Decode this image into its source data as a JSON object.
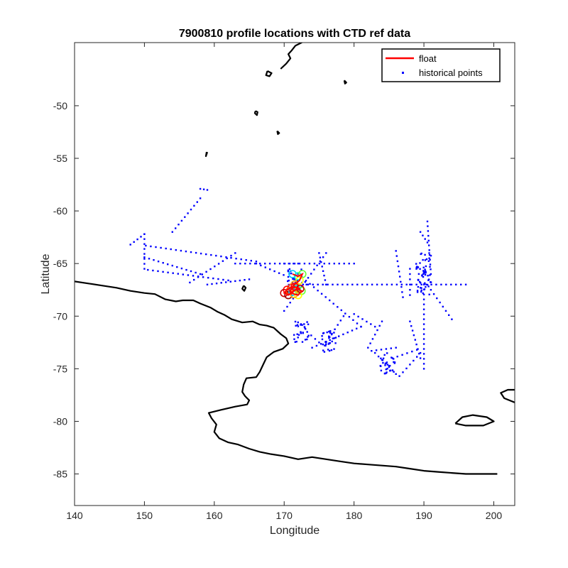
{
  "chart_data": {
    "type": "scatter",
    "title": "7900810 profile locations with CTD ref data",
    "xlabel": "Longitude",
    "ylabel": "Latitude",
    "xlim": [
      140,
      203
    ],
    "ylim": [
      -88,
      -44
    ],
    "xticks": [
      140,
      150,
      160,
      170,
      180,
      190,
      200
    ],
    "yticks": [
      -50,
      -55,
      -60,
      -65,
      -70,
      -75,
      -80,
      -85
    ],
    "grid": false,
    "legend": {
      "placement": "top-right",
      "entries": [
        {
          "label": "float",
          "color": "#ff0000",
          "marker": "line"
        },
        {
          "label": "historical points",
          "color": "#0000ff",
          "marker": "dot"
        }
      ]
    },
    "colors": {
      "historical": "#0000ff",
      "float": "#ff0000",
      "coast": "#000000"
    },
    "coastline": [
      [
        [
          140.0,
          -66.7
        ],
        [
          142.0,
          -66.9
        ],
        [
          144.0,
          -67.1
        ],
        [
          146.0,
          -67.3
        ],
        [
          148.0,
          -67.6
        ],
        [
          150.0,
          -67.8
        ],
        [
          151.5,
          -67.9
        ],
        [
          153.0,
          -68.4
        ],
        [
          154.5,
          -68.6
        ],
        [
          155.5,
          -68.5
        ],
        [
          157.0,
          -68.5
        ],
        [
          158.0,
          -68.8
        ],
        [
          159.5,
          -69.2
        ],
        [
          160.5,
          -69.6
        ],
        [
          161.5,
          -69.9
        ],
        [
          162.5,
          -70.3
        ],
        [
          164.0,
          -70.6
        ],
        [
          165.5,
          -70.5
        ],
        [
          166.5,
          -70.8
        ],
        [
          167.5,
          -70.9
        ],
        [
          168.5,
          -71.1
        ],
        [
          169.5,
          -71.7
        ],
        [
          170.3,
          -72.1
        ],
        [
          170.6,
          -72.6
        ],
        [
          169.8,
          -73.1
        ],
        [
          168.5,
          -73.4
        ],
        [
          167.5,
          -73.9
        ],
        [
          167.0,
          -74.6
        ],
        [
          166.5,
          -75.3
        ],
        [
          166.0,
          -75.8
        ],
        [
          164.6,
          -75.9
        ],
        [
          164.2,
          -76.5
        ],
        [
          164.0,
          -77.2
        ],
        [
          164.4,
          -77.6
        ],
        [
          165.0,
          -78.0
        ],
        [
          164.7,
          -78.4
        ],
        [
          163.0,
          -78.6
        ],
        [
          161.0,
          -78.9
        ],
        [
          159.2,
          -79.2
        ],
        [
          159.6,
          -79.7
        ],
        [
          160.3,
          -80.3
        ],
        [
          160.0,
          -81.0
        ],
        [
          160.7,
          -81.6
        ],
        [
          162.0,
          -82.0
        ],
        [
          163.4,
          -82.2
        ],
        [
          165.0,
          -82.6
        ],
        [
          166.5,
          -82.9
        ],
        [
          168.0,
          -83.1
        ],
        [
          170.0,
          -83.3
        ],
        [
          172.0,
          -83.6
        ],
        [
          174.0,
          -83.4
        ],
        [
          176.0,
          -83.6
        ],
        [
          178.0,
          -83.8
        ],
        [
          180.0,
          -84.0
        ],
        [
          182.0,
          -84.1
        ],
        [
          184.0,
          -84.2
        ],
        [
          186.0,
          -84.3
        ],
        [
          188.0,
          -84.5
        ],
        [
          190.0,
          -84.7
        ],
        [
          192.0,
          -84.8
        ],
        [
          194.0,
          -84.9
        ],
        [
          196.0,
          -85.0
        ],
        [
          198.0,
          -85.0
        ],
        [
          200.5,
          -85.0
        ]
      ],
      [
        [
          203.0,
          -78.2
        ],
        [
          201.5,
          -77.8
        ],
        [
          201.0,
          -77.3
        ],
        [
          202.0,
          -77.0
        ],
        [
          203.0,
          -77.0
        ]
      ],
      [
        [
          194.5,
          -80.2
        ],
        [
          195.5,
          -79.6
        ],
        [
          197.0,
          -79.4
        ],
        [
          199.0,
          -79.6
        ],
        [
          200.0,
          -80.0
        ],
        [
          198.5,
          -80.4
        ],
        [
          196.0,
          -80.4
        ],
        [
          194.5,
          -80.2
        ]
      ],
      [
        [
          171.3,
          -43.0
        ],
        [
          172.0,
          -43.6
        ],
        [
          172.5,
          -44.0
        ],
        [
          171.6,
          -44.3
        ],
        [
          171.0,
          -44.8
        ],
        [
          170.6,
          -45.1
        ],
        [
          170.9,
          -45.5
        ],
        [
          170.3,
          -46.0
        ],
        [
          169.5,
          -46.5
        ]
      ],
      [
        [
          167.6,
          -46.7
        ],
        [
          168.2,
          -46.9
        ],
        [
          167.9,
          -47.2
        ],
        [
          167.4,
          -47.1
        ],
        [
          167.6,
          -46.7
        ]
      ],
      [
        [
          165.9,
          -50.5
        ],
        [
          166.2,
          -50.6
        ],
        [
          166.1,
          -50.9
        ],
        [
          165.8,
          -50.7
        ],
        [
          165.9,
          -50.5
        ]
      ],
      [
        [
          159.0,
          -54.4
        ],
        [
          158.9,
          -54.6
        ],
        [
          158.8,
          -54.8
        ],
        [
          158.9,
          -54.4
        ]
      ],
      [
        [
          178.6,
          -47.6
        ],
        [
          178.9,
          -47.8
        ],
        [
          178.7,
          -47.9
        ],
        [
          178.6,
          -47.6
        ]
      ],
      [
        [
          169.0,
          -52.4
        ],
        [
          169.3,
          -52.6
        ],
        [
          169.1,
          -52.7
        ],
        [
          169.0,
          -52.4
        ]
      ],
      [
        [
          164.2,
          -67.1
        ],
        [
          164.5,
          -67.3
        ],
        [
          164.3,
          -67.6
        ],
        [
          164.0,
          -67.4
        ],
        [
          164.2,
          -67.1
        ]
      ]
    ],
    "historical_tracks": [
      [
        [
          148.0,
          -63.2
        ],
        [
          150.0,
          -62.2
        ]
      ],
      [
        [
          150.0,
          -62.2
        ],
        [
          150.0,
          -65.5
        ]
      ],
      [
        [
          150.2,
          -63.3
        ],
        [
          166.0,
          -64.8
        ]
      ],
      [
        [
          150.0,
          -64.4
        ],
        [
          158.0,
          -66.0
        ]
      ],
      [
        [
          150.5,
          -65.6
        ],
        [
          162.0,
          -66.6
        ]
      ],
      [
        [
          156.5,
          -66.8
        ],
        [
          163.0,
          -64.0
        ]
      ],
      [
        [
          159.0,
          -67.0
        ],
        [
          165.0,
          -66.5
        ]
      ],
      [
        [
          154.0,
          -62.0
        ],
        [
          158.0,
          -58.8
        ]
      ],
      [
        [
          163.0,
          -65.0
        ],
        [
          180.0,
          -65.0
        ]
      ],
      [
        [
          170.0,
          -65.0
        ],
        [
          172.0,
          -65.0
        ]
      ],
      [
        [
          166.0,
          -65.0
        ],
        [
          173.2,
          -67.0
        ]
      ],
      [
        [
          175.0,
          -64.0
        ],
        [
          176.0,
          -67.0
        ]
      ],
      [
        [
          172.0,
          -67.0
        ],
        [
          196.0,
          -67.0
        ]
      ],
      [
        [
          172.0,
          -66.0
        ],
        [
          181.0,
          -71.0
        ]
      ],
      [
        [
          170.0,
          -69.5
        ],
        [
          176.0,
          -64.0
        ]
      ],
      [
        [
          173.3,
          -71.5
        ],
        [
          175.0,
          -72.5
        ]
      ],
      [
        [
          176.0,
          -72.5
        ],
        [
          178.5,
          -70.0
        ]
      ],
      [
        [
          174.0,
          -73.0
        ],
        [
          181.0,
          -71.0
        ]
      ],
      [
        [
          186.0,
          -63.8
        ],
        [
          187.0,
          -68.2
        ]
      ],
      [
        [
          189.5,
          -62.0
        ],
        [
          190.5,
          -63.0
        ]
      ],
      [
        [
          190.5,
          -61.0
        ],
        [
          191.0,
          -66.0
        ]
      ],
      [
        [
          190.0,
          -67.0
        ],
        [
          190.0,
          -75.0
        ]
      ],
      [
        [
          188.0,
          -70.5
        ],
        [
          189.5,
          -74.0
        ]
      ],
      [
        [
          183.0,
          -73.5
        ],
        [
          186.0,
          -75.5
        ]
      ],
      [
        [
          185.5,
          -74.0
        ],
        [
          189.0,
          -73.2
        ]
      ],
      [
        [
          186.5,
          -75.7
        ],
        [
          189.5,
          -73.5
        ]
      ],
      [
        [
          182.0,
          -73.0
        ],
        [
          184.0,
          -70.5
        ]
      ],
      [
        [
          191.0,
          -67.5
        ],
        [
          194.0,
          -70.3
        ]
      ],
      [
        [
          180.0,
          -69.8
        ],
        [
          183.0,
          -71.0
        ]
      ],
      [
        [
          182.5,
          -73.3
        ],
        [
          186.0,
          -73.0
        ]
      ],
      [
        [
          188.0,
          -65.5
        ],
        [
          188.0,
          -68.0
        ]
      ],
      [
        [
          158.0,
          -57.9
        ],
        [
          159.0,
          -58.0
        ]
      ]
    ],
    "historical_clusters": [
      [
        171.5,
        -66.5
      ],
      [
        172.5,
        -71.5
      ],
      [
        176.5,
        -72.4
      ],
      [
        184.8,
        -74.5
      ],
      [
        190.0,
        -67.0
      ],
      [
        190.0,
        -65.0
      ]
    ],
    "float_track": [
      [
        171.2,
        -66.0
      ],
      [
        172.0,
        -66.2
      ],
      [
        172.6,
        -66.0
      ],
      [
        172.2,
        -66.6
      ],
      [
        171.5,
        -67.0
      ],
      [
        171.0,
        -67.3
      ],
      [
        170.4,
        -67.5
      ],
      [
        170.0,
        -67.8
      ],
      [
        170.6,
        -68.0
      ],
      [
        171.2,
        -67.7
      ],
      [
        171.8,
        -67.4
      ],
      [
        172.5,
        -67.6
      ],
      [
        172.0,
        -68.0
      ],
      [
        171.4,
        -67.9
      ],
      [
        170.8,
        -67.6
      ],
      [
        171.5,
        -67.2
      ],
      [
        172.3,
        -67.4
      ]
    ]
  }
}
